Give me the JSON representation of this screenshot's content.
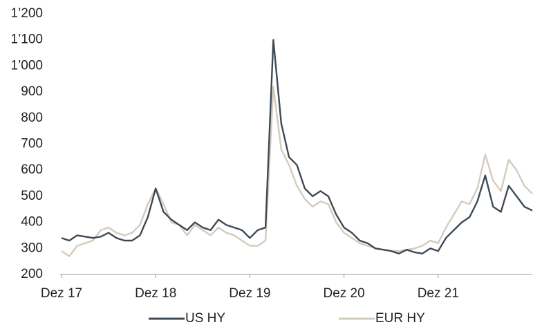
{
  "chart_data": {
    "type": "line",
    "x": [
      "2017-12",
      "2018-01",
      "2018-02",
      "2018-03",
      "2018-04",
      "2018-05",
      "2018-06",
      "2018-07",
      "2018-08",
      "2018-09",
      "2018-10",
      "2018-11",
      "2018-12",
      "2019-01",
      "2019-02",
      "2019-03",
      "2019-04",
      "2019-05",
      "2019-06",
      "2019-07",
      "2019-08",
      "2019-09",
      "2019-10",
      "2019-11",
      "2019-12",
      "2020-01",
      "2020-02",
      "2020-03",
      "2020-04",
      "2020-05",
      "2020-06",
      "2020-07",
      "2020-08",
      "2020-09",
      "2020-10",
      "2020-11",
      "2020-12",
      "2021-01",
      "2021-02",
      "2021-03",
      "2021-04",
      "2021-05",
      "2021-06",
      "2021-07",
      "2021-08",
      "2021-09",
      "2021-10",
      "2021-11",
      "2021-12",
      "2022-01",
      "2022-02",
      "2022-03",
      "2022-04",
      "2022-05",
      "2022-06",
      "2022-07",
      "2022-08",
      "2022-09",
      "2022-10",
      "2022-11",
      "2022-12"
    ],
    "series": [
      {
        "name": "US HY",
        "color": "#3d4a55",
        "values": [
          340,
          330,
          350,
          345,
          340,
          345,
          360,
          340,
          330,
          330,
          350,
          420,
          530,
          440,
          410,
          390,
          370,
          400,
          380,
          370,
          410,
          390,
          380,
          370,
          340,
          370,
          380,
          1100,
          780,
          650,
          620,
          530,
          500,
          520,
          500,
          430,
          380,
          360,
          330,
          320,
          300,
          295,
          290,
          280,
          295,
          285,
          280,
          300,
          290,
          340,
          370,
          400,
          420,
          480,
          580,
          460,
          440,
          540,
          500,
          460,
          445
        ]
      },
      {
        "name": "EUR HY",
        "color": "#d4cbbd",
        "values": [
          290,
          270,
          310,
          320,
          330,
          370,
          380,
          360,
          350,
          360,
          390,
          470,
          530,
          470,
          400,
          390,
          350,
          390,
          370,
          350,
          380,
          360,
          350,
          330,
          310,
          310,
          330,
          920,
          680,
          620,
          540,
          490,
          460,
          480,
          470,
          400,
          360,
          340,
          320,
          310,
          300,
          295,
          290,
          290,
          295,
          300,
          310,
          330,
          320,
          380,
          430,
          480,
          470,
          530,
          660,
          560,
          520,
          640,
          600,
          540,
          510
        ]
      }
    ],
    "xlim": [
      "2017-12",
      "2022-12"
    ],
    "xticks": [
      {
        "value": "2017-12",
        "label": "Dez 17"
      },
      {
        "value": "2018-12",
        "label": "Dez 18"
      },
      {
        "value": "2019-12",
        "label": "Dez 19"
      },
      {
        "value": "2020-12",
        "label": "Dez 20"
      },
      {
        "value": "2021-12",
        "label": "Dez 21"
      }
    ],
    "ylim": [
      200,
      1200
    ],
    "yticks": [
      200,
      300,
      400,
      500,
      600,
      700,
      800,
      900,
      {
        "value": 1000,
        "label": "1’000"
      },
      {
        "value": 1100,
        "label": "1’100"
      },
      {
        "value": 1200,
        "label": "1’200"
      }
    ],
    "grid": false,
    "legend": "bottom"
  }
}
